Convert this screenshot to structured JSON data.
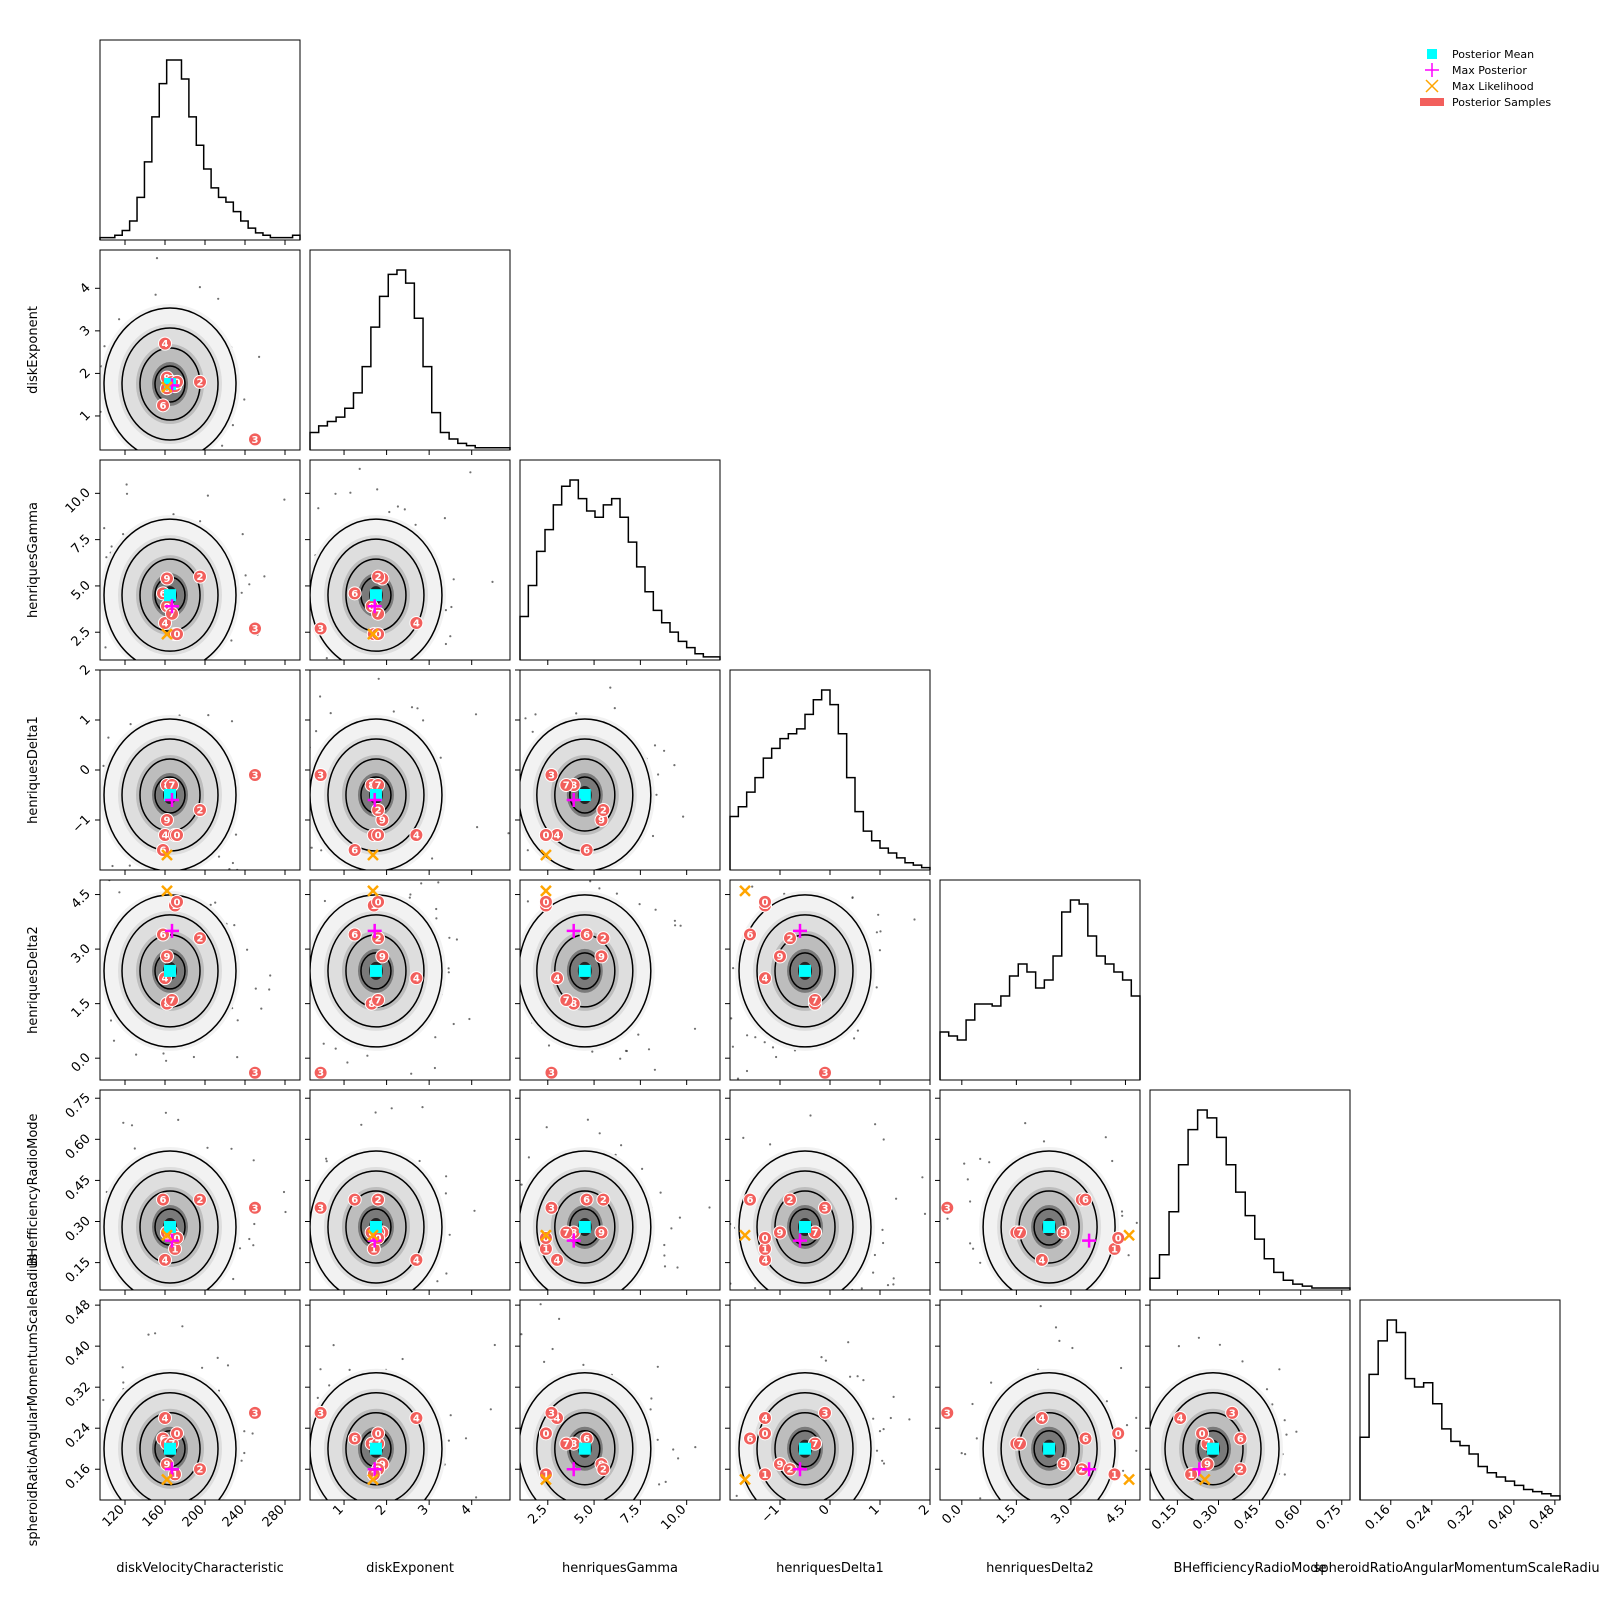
{
  "chart_data": {
    "type": "corner",
    "parameters": [
      {
        "name": "diskVelocityCharacteristic",
        "range": [
          95,
          295
        ],
        "ticks": [
          120,
          160,
          200,
          240,
          280
        ],
        "tick_labels": [
          "120",
          "160",
          "200",
          "240",
          "280"
        ],
        "mean": 165,
        "max_posterior": 167,
        "max_likelihood": 162,
        "hist": [
          1,
          1,
          2,
          4,
          8,
          18,
          33,
          52,
          66,
          76,
          76,
          68,
          52,
          40,
          30,
          22,
          18,
          16,
          12,
          8,
          5,
          3,
          2,
          1,
          1,
          1,
          2
        ]
      },
      {
        "name": "diskExponent",
        "range": [
          0.2,
          4.9
        ],
        "ticks": [
          1,
          2,
          3,
          4
        ],
        "tick_labels": [
          "1",
          "2",
          "3",
          "4"
        ],
        "mean": 1.75,
        "max_posterior": 1.72,
        "max_likelihood": 1.68,
        "hist": [
          8,
          11,
          13,
          15,
          19,
          26,
          38,
          56,
          70,
          80,
          82,
          76,
          60,
          38,
          17,
          8,
          5,
          3,
          2,
          1,
          1,
          1,
          1
        ]
      },
      {
        "name": "henriquesGamma",
        "range": [
          1.0,
          11.8
        ],
        "ticks": [
          2.5,
          5.0,
          7.5,
          10.0
        ],
        "tick_labels": [
          "2.5",
          "5.0",
          "7.5",
          "10.0"
        ],
        "mean": 4.5,
        "max_posterior": 3.9,
        "max_likelihood": 2.4,
        "hist": [
          14,
          24,
          35,
          42,
          50,
          56,
          58,
          52,
          48,
          46,
          50,
          52,
          46,
          38,
          30,
          22,
          16,
          12,
          9,
          6,
          4,
          2,
          1,
          1
        ]
      },
      {
        "name": "henriquesDelta1",
        "range": [
          -2.0,
          2.0
        ],
        "ticks": [
          -1,
          0,
          1,
          2
        ],
        "tick_labels": [
          "−1",
          "0",
          "1",
          "2"
        ],
        "mean": -0.5,
        "max_posterior": -0.6,
        "max_likelihood": -1.7,
        "hist": [
          22,
          26,
          32,
          38,
          46,
          50,
          54,
          56,
          58,
          64,
          70,
          74,
          68,
          56,
          38,
          24,
          16,
          12,
          9,
          7,
          5,
          3,
          2,
          1
        ]
      },
      {
        "name": "henriquesDelta2",
        "range": [
          -0.6,
          4.9
        ],
        "ticks": [
          0.0,
          1.5,
          3.0,
          4.5
        ],
        "tick_labels": [
          "0.0",
          "1.5",
          "3.0",
          "4.5"
        ],
        "mean": 2.4,
        "max_posterior": 3.5,
        "max_likelihood": 4.6,
        "hist": [
          24,
          22,
          20,
          30,
          38,
          38,
          37,
          42,
          52,
          58,
          54,
          46,
          50,
          62,
          84,
          90,
          88,
          72,
          62,
          58,
          54,
          50,
          42
        ]
      },
      {
        "name": "BHefficiencyRadioMode",
        "range": [
          0.05,
          0.78
        ],
        "ticks": [
          0.15,
          0.3,
          0.45,
          0.6,
          0.75
        ],
        "tick_labels": [
          "0.15",
          "0.30",
          "0.45",
          "0.60",
          "0.75"
        ],
        "mean": 0.28,
        "max_posterior": 0.23,
        "max_likelihood": 0.25,
        "hist": [
          6,
          18,
          40,
          64,
          82,
          92,
          88,
          78,
          64,
          50,
          38,
          26,
          16,
          9,
          5,
          3,
          2,
          1,
          1,
          1,
          1
        ]
      },
      {
        "name": "spheroidRatioAngularMomentumScaleRadius",
        "range": [
          0.1,
          0.49
        ],
        "ticks": [
          0.16,
          0.24,
          0.32,
          0.4,
          0.48
        ],
        "tick_labels": [
          "0.16",
          "0.24",
          "0.32",
          "0.40",
          "0.48"
        ],
        "mean": 0.2,
        "max_posterior": 0.16,
        "max_likelihood": 0.14,
        "hist": [
          30,
          60,
          76,
          86,
          80,
          58,
          54,
          56,
          46,
          34,
          28,
          26,
          22,
          16,
          13,
          11,
          9,
          7,
          5,
          4,
          3,
          2
        ]
      }
    ],
    "legend": {
      "position": "top-right",
      "entries": [
        {
          "label": "Posterior Mean",
          "marker": "square",
          "color": "#00ffff"
        },
        {
          "label": "Max Posterior",
          "marker": "plus",
          "color": "#ff00ff"
        },
        {
          "label": "Max Likelihood",
          "marker": "x",
          "color": "#ffa500"
        },
        {
          "label": "Posterior Samples",
          "marker": "bar",
          "color": "#f25f5c"
        }
      ]
    },
    "sample_markers": [
      {
        "label": "4",
        "values": [
          160,
          2.7,
          3.0,
          -1.3,
          2.2,
          0.16,
          0.26
        ]
      },
      {
        "label": "9",
        "values": [
          162,
          1.9,
          5.4,
          -1.0,
          2.8,
          0.26,
          0.17
        ]
      },
      {
        "label": "2",
        "values": [
          195,
          1.8,
          5.5,
          -0.8,
          3.3,
          0.38,
          0.16
        ]
      },
      {
        "label": "6",
        "values": [
          158,
          1.25,
          4.6,
          -1.6,
          3.4,
          0.38,
          0.22
        ]
      },
      {
        "label": "3",
        "values": [
          250,
          0.45,
          2.7,
          -0.1,
          -0.4,
          0.35,
          0.27
        ]
      },
      {
        "label": "8",
        "values": [
          162,
          1.65,
          3.9,
          -0.3,
          1.5,
          0.26,
          0.21
        ]
      },
      {
        "label": "7",
        "values": [
          167,
          1.8,
          3.5,
          -0.3,
          1.6,
          0.26,
          0.21
        ]
      },
      {
        "label": "1",
        "values": [
          170,
          1.7,
          2.4,
          -1.3,
          4.2,
          0.2,
          0.15
        ]
      },
      {
        "label": "0",
        "values": [
          172,
          1.8,
          2.4,
          -1.3,
          4.3,
          0.24,
          0.23
        ]
      }
    ],
    "grid": false,
    "contour_style": "black contours over grey 2D histogram"
  }
}
